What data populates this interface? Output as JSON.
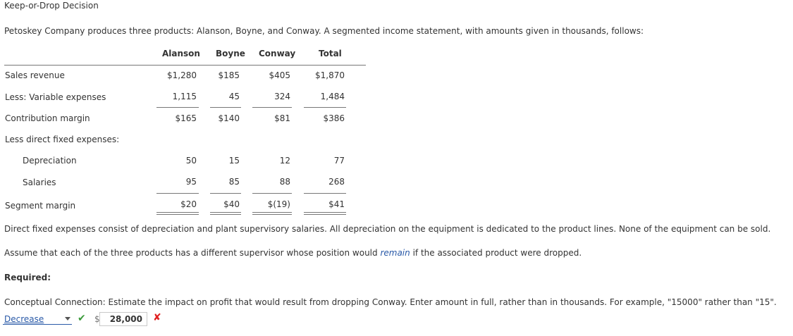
{
  "heading": "Keep-or-Drop Decision",
  "intro": "Petoskey Company produces three products: Alanson, Boyne, and Conway. A segmented income statement, with amounts given in thousands, follows:",
  "table": {
    "headers": [
      "Alanson",
      "Boyne",
      "Conway",
      "Total"
    ],
    "rows": [
      {
        "label": "Sales revenue",
        "values": [
          "$1,280",
          "$185",
          "$405",
          "$1,870"
        ]
      },
      {
        "label": "Less: Variable expenses",
        "values": [
          "1,115",
          "45",
          "324",
          "1,484"
        ]
      },
      {
        "label": "Contribution margin",
        "values": [
          "$165",
          "$140",
          "$81",
          "$386"
        ]
      },
      {
        "label": "Less direct fixed expenses:",
        "values": [
          "",
          "",
          "",
          ""
        ]
      },
      {
        "label": "Depreciation",
        "values": [
          "50",
          "15",
          "12",
          "77"
        ]
      },
      {
        "label": "Salaries",
        "values": [
          "95",
          "85",
          "88",
          "268"
        ]
      },
      {
        "label": "Segment margin",
        "values": [
          "$20",
          "$40",
          "$(19)",
          "$41"
        ]
      }
    ]
  },
  "para1": "Direct fixed expenses consist of depreciation and plant supervisory salaries. All depreciation on the equipment is dedicated to the product lines. None of the equipment can be sold.",
  "para2": {
    "before": "Assume that each of the three products has a different supervisor whose position would ",
    "emphasis": "remain",
    "after": " if the associated product were dropped."
  },
  "required": "Required:",
  "question": "Conceptual Connection: Estimate the impact on profit that would result from dropping Conway. Enter amount in full, rather than in thousands. For example, \"15000\" rather than \"15\".",
  "answer": {
    "selected": "Decrease",
    "check_icon": "check-icon",
    "currency": "$",
    "amount": "28,000",
    "wrong_icon": "x-icon"
  },
  "colors": {
    "text": "#333333",
    "link": "#2a5aa8",
    "correct": "#3a9a3a",
    "incorrect": "#e02020"
  }
}
